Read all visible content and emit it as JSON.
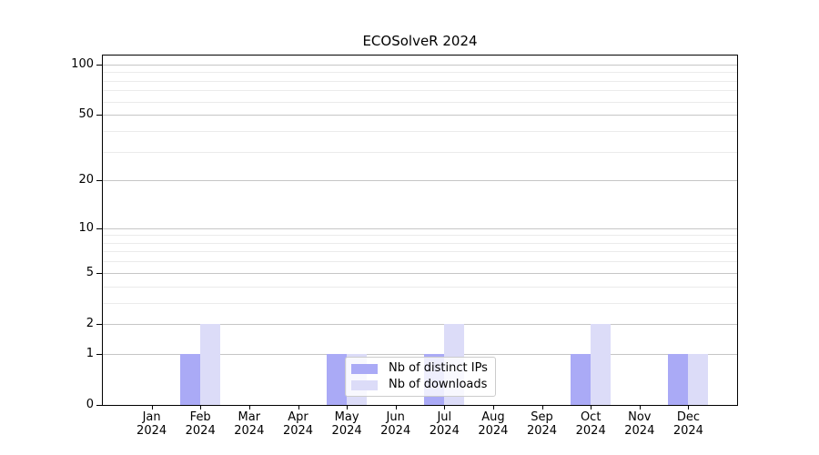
{
  "title": "ECOSolveR 2024",
  "colors": {
    "series_distinct_ips": "#aaaaf6",
    "series_downloads": "#dcdcf8",
    "grid_major": "#c6c6c6",
    "grid_minor": "#ebebeb",
    "axis": "#000000",
    "text": "#000000",
    "legend_border": "#cccccc",
    "background": "#ffffff"
  },
  "chart_data": {
    "type": "bar",
    "title": "ECOSolveR 2024",
    "xlabel": "",
    "ylabel": "",
    "categories": [
      "Jan 2024",
      "Feb 2024",
      "Mar 2024",
      "Apr 2024",
      "May 2024",
      "Jun 2024",
      "Jul 2024",
      "Aug 2024",
      "Sep 2024",
      "Oct 2024",
      "Nov 2024",
      "Dec 2024"
    ],
    "series": [
      {
        "name": "Nb of distinct IPs",
        "color": "#aaaaf6",
        "values": [
          0,
          1,
          0,
          0,
          1,
          0,
          1,
          0,
          0,
          1,
          0,
          1
        ]
      },
      {
        "name": "Nb of downloads",
        "color": "#dcdcf8",
        "values": [
          0,
          2,
          0,
          0,
          1,
          0,
          2,
          0,
          0,
          2,
          0,
          1
        ]
      }
    ],
    "yscale": "log1p",
    "yticks_major": [
      0,
      1,
      2,
      5,
      10,
      20,
      50,
      100
    ],
    "yticks_minor": [
      3,
      4,
      6,
      7,
      8,
      9,
      30,
      40,
      60,
      70,
      80,
      90
    ],
    "ylim": [
      0,
      113
    ],
    "grid": true,
    "legend_position": "lower-center-inset"
  }
}
